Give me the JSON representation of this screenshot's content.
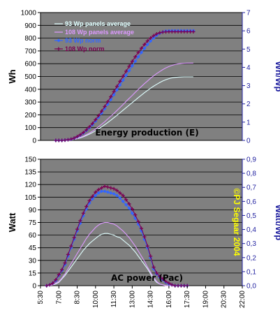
{
  "colors": {
    "plot_bg": "#808080",
    "axis_right": "#1f1f9f",
    "s93avg": "#e0ffff",
    "s108avg": "#dd99ff",
    "s93norm": "#3366ff",
    "s108norm": "#7a0052",
    "copyright": "#ffff00"
  },
  "shared_x": {
    "tick_labels": [
      "5:30",
      "7:00",
      "8:30",
      "10:00",
      "11:30",
      "13:00",
      "14:30",
      "16:00",
      "17:30",
      "19:00",
      "20:30",
      "22:00"
    ],
    "tick_hours": [
      5.5,
      7,
      8.5,
      10,
      11.5,
      13,
      14.5,
      16,
      17.5,
      19,
      20.5,
      22
    ]
  },
  "copyright": "©PJ Segaar 2004",
  "chart_data": [
    {
      "type": "line",
      "title": "Energy production (E)",
      "ylabel": "Wh",
      "ylabel_right": "Wh/Wp",
      "ylim": [
        0,
        1000
      ],
      "ylim_right": [
        0,
        7
      ],
      "yticks": [
        "0",
        "100",
        "200",
        "300",
        "400",
        "500",
        "600",
        "700",
        "800",
        "900",
        "1000"
      ],
      "yticks_right": [
        "0",
        "1",
        "2",
        "3",
        "4",
        "5",
        "6",
        "7"
      ],
      "grid": true,
      "legend_position": "top-left",
      "x_start_hour": 6.75,
      "x_step_hours": 0.25,
      "series": [
        {
          "name": "93 Wp panels average",
          "color_key": "s93avg",
          "marker": "line",
          "values": [
            0,
            0,
            0,
            1,
            2,
            4,
            8,
            13,
            20,
            28,
            38,
            49,
            61,
            75,
            90,
            106,
            123,
            140,
            158,
            177,
            196,
            216,
            236,
            256,
            276,
            296,
            315,
            335,
            354,
            373,
            391,
            408,
            424,
            439,
            453,
            465,
            475,
            483,
            489,
            493,
            495,
            496,
            497,
            497,
            497,
            497
          ]
        },
        {
          "name": "108 Wp panels average",
          "color_key": "s108avg",
          "marker": "line",
          "values": [
            0,
            0,
            0,
            1,
            3,
            5,
            10,
            16,
            24,
            33,
            45,
            58,
            72,
            89,
            107,
            126,
            146,
            167,
            189,
            211,
            234,
            257,
            281,
            305,
            329,
            352,
            376,
            399,
            422,
            444,
            465,
            486,
            505,
            523,
            539,
            554,
            567,
            578,
            587,
            594,
            599,
            602,
            604,
            605,
            605,
            605
          ]
        },
        {
          "name": "93 Wp norm",
          "color_key": "s93norm",
          "marker": "diamond",
          "values": [
            0,
            0,
            0,
            2,
            5,
            9,
            17,
            28,
            41,
            57,
            77,
            99,
            123,
            151,
            181,
            214,
            248,
            283,
            320,
            357,
            395,
            433,
            471,
            509,
            546,
            583,
            619,
            654,
            688,
            720,
            750,
            777,
            801,
            822,
            838,
            849,
            855,
            857,
            858,
            858,
            858,
            858,
            858,
            858,
            858,
            858
          ]
        },
        {
          "name": "108 Wp norm",
          "color_key": "s108norm",
          "marker": "plus",
          "values": [
            0,
            0,
            0,
            2,
            5,
            10,
            18,
            30,
            44,
            61,
            82,
            106,
            132,
            162,
            194,
            229,
            265,
            303,
            342,
            382,
            422,
            462,
            502,
            541,
            580,
            618,
            654,
            689,
            721,
            751,
            778,
            801,
            819,
            833,
            842,
            847,
            849,
            850,
            850,
            850,
            850,
            850,
            850,
            850,
            850,
            850
          ]
        }
      ]
    },
    {
      "type": "line",
      "title": "AC power (Pac)",
      "ylabel": "Watt",
      "ylabel_right": "Watt/Wp",
      "ylim": [
        0,
        150
      ],
      "ylim_right": [
        0,
        0.9
      ],
      "yticks": [
        "0",
        "15",
        "30",
        "45",
        "60",
        "75",
        "90",
        "105",
        "120",
        "135",
        "150"
      ],
      "yticks_right": [
        "0,0",
        "0,1",
        "0,2",
        "0,3",
        "0,4",
        "0,5",
        "0,6",
        "0,7",
        "0,8",
        "0,9"
      ],
      "grid": true,
      "x_start_hour": 6.0,
      "x_step_hours": 0.25,
      "series": [
        {
          "name": "93 Wp panels average",
          "color_key": "s93avg",
          "values": [
            0,
            0,
            1,
            2,
            4,
            8,
            12,
            17,
            22,
            27,
            32,
            37,
            42,
            46,
            50,
            53,
            56,
            59,
            61,
            62,
            62,
            61,
            60,
            58,
            57,
            54,
            51,
            48,
            44,
            40,
            35,
            30,
            25,
            20,
            14,
            8,
            4,
            2,
            1,
            0,
            0,
            0,
            0,
            0,
            0,
            0,
            0
          ]
        },
        {
          "name": "108 Wp panels average",
          "color_key": "s108avg",
          "values": [
            0,
            0,
            1,
            3,
            5,
            9,
            14,
            20,
            26,
            32,
            38,
            44,
            50,
            56,
            61,
            65,
            69,
            72,
            74,
            75,
            75,
            74,
            73,
            71,
            68,
            65,
            61,
            57,
            52,
            47,
            41,
            35,
            29,
            22,
            16,
            10,
            5,
            2,
            1,
            0,
            0,
            0,
            0,
            0,
            0,
            0,
            0
          ]
        },
        {
          "name": "93 Wp norm",
          "color_key": "s93norm",
          "marker": "diamond",
          "values": [
            0,
            1,
            3,
            6,
            12,
            18,
            25,
            35,
            45,
            55,
            65,
            74,
            83,
            91,
            98,
            103,
            107,
            110,
            112,
            112,
            111,
            110,
            109,
            107,
            104,
            100,
            96,
            92,
            86,
            80,
            73,
            65,
            55,
            45,
            33,
            20,
            14,
            10,
            7,
            4,
            2,
            1,
            0,
            0,
            0,
            0,
            0
          ]
        },
        {
          "name": "108 Wp norm",
          "color_key": "s108norm",
          "marker": "plus",
          "values": [
            0,
            1,
            3,
            7,
            13,
            19,
            27,
            37,
            47,
            57,
            67,
            77,
            86,
            94,
            101,
            106,
            111,
            114,
            116,
            118,
            117,
            116,
            115,
            113,
            110,
            107,
            102,
            97,
            91,
            84,
            76,
            68,
            58,
            47,
            35,
            22,
            15,
            11,
            8,
            5,
            3,
            1,
            0,
            0,
            0,
            0,
            0
          ]
        }
      ]
    }
  ]
}
